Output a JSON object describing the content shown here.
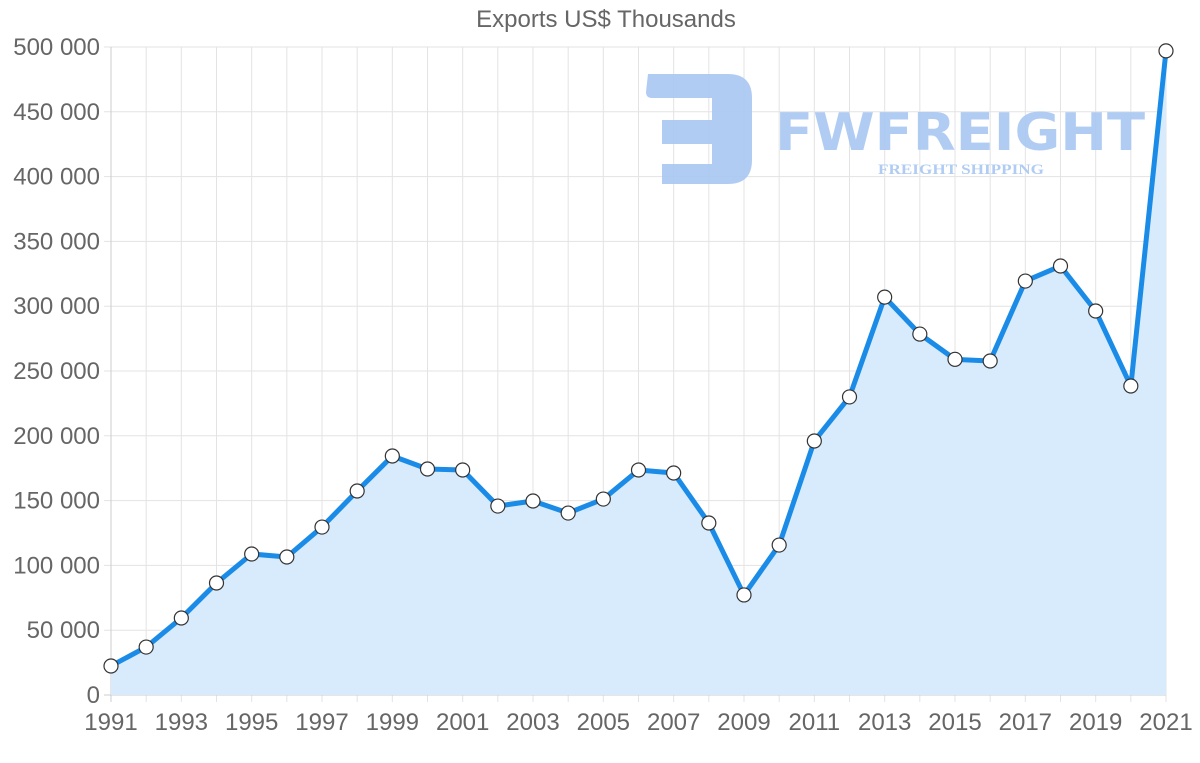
{
  "chart_data": {
    "type": "area",
    "title": "Exports US$ Thousands",
    "xlabel": "",
    "ylabel": "",
    "x": [
      1991,
      1992,
      1993,
      1994,
      1995,
      1996,
      1997,
      1998,
      1999,
      2000,
      2001,
      2002,
      2003,
      2004,
      2005,
      2006,
      2007,
      2008,
      2009,
      2010,
      2011,
      2012,
      2013,
      2014,
      2015,
      2016,
      2017,
      2018,
      2019,
      2020,
      2021
    ],
    "series": [
      {
        "name": "Exports US$ Thousands",
        "values": [
          22400,
          37000,
          59400,
          86400,
          108800,
          106500,
          129600,
          157400,
          184400,
          174400,
          173600,
          145800,
          149700,
          140400,
          151200,
          173600,
          171300,
          132700,
          77200,
          115700,
          196000,
          230000,
          307000,
          278500,
          259000,
          257700,
          319400,
          331000,
          296300,
          238400,
          497000
        ]
      }
    ],
    "ylim": [
      0,
      500000
    ],
    "y_ticks": [
      "500 000",
      "450 000",
      "400 000",
      "350 000",
      "300 000",
      "250 000",
      "200 000",
      "150 000",
      "100 000",
      "50 000",
      "0"
    ],
    "x_tick_labels": [
      "1991",
      "1993",
      "1995",
      "1997",
      "1999",
      "2001",
      "2003",
      "2005",
      "2007",
      "2009",
      "2011",
      "2013",
      "2015",
      "2017",
      "2019",
      "2021"
    ],
    "grid": true,
    "legend": "none",
    "line_color": "#1a8ce8",
    "fill_color": "#d8ebfc",
    "watermark": {
      "brand": "FWFREIGHT",
      "tagline": "FREIGHT SHIPPING",
      "color": "#a9c7f2"
    }
  }
}
